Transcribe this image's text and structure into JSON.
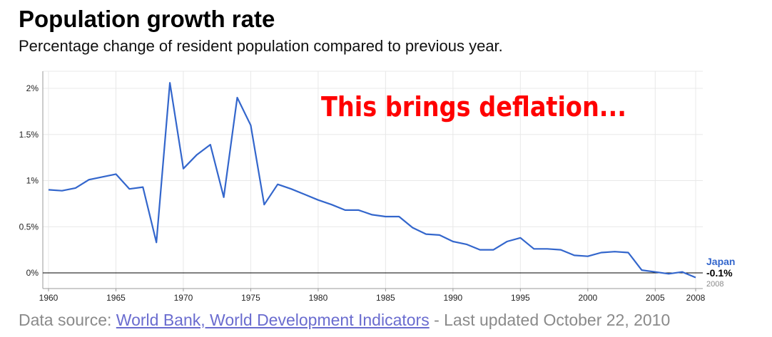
{
  "header": {
    "title": "Population growth rate",
    "subtitle": "Percentage change of resident population compared to previous year."
  },
  "footer": {
    "prefix": "Data source: ",
    "link_text": "World Bank, World Development Indicators",
    "suffix": " - Last updated October 22, 2010"
  },
  "chart_data": {
    "type": "line",
    "xlim": [
      1960,
      2008
    ],
    "ylim": [
      -0.1,
      2.2
    ],
    "grid": true,
    "x_ticks": [
      1960,
      1965,
      1970,
      1975,
      1980,
      1985,
      1990,
      1995,
      2000,
      2005,
      2008
    ],
    "x_tick_labels": [
      "1960",
      "1965",
      "1970",
      "1975",
      "1980",
      "1985",
      "1990",
      "1995",
      "2000",
      "2005",
      "2008"
    ],
    "y_ticks": [
      0,
      0.5,
      1,
      1.5,
      2
    ],
    "y_tick_labels": [
      "0%",
      "0.5%",
      "1%",
      "1.5%",
      "2%"
    ],
    "annotation": "This brings deflation...",
    "colors": {
      "series": "#3366cc",
      "annotation": "#ff0000",
      "grid": "#e8e8e8",
      "axis": "#000000"
    },
    "end_label": {
      "name": "Japan",
      "value": "-0.1%",
      "year": "2008"
    },
    "series": [
      {
        "name": "Japan",
        "x": [
          1960,
          1961,
          1962,
          1963,
          1964,
          1965,
          1966,
          1967,
          1968,
          1969,
          1970,
          1971,
          1972,
          1973,
          1974,
          1975,
          1976,
          1977,
          1978,
          1979,
          1980,
          1981,
          1982,
          1983,
          1984,
          1985,
          1986,
          1987,
          1988,
          1989,
          1990,
          1991,
          1992,
          1993,
          1994,
          1995,
          1996,
          1997,
          1998,
          1999,
          2000,
          2001,
          2002,
          2003,
          2004,
          2005,
          2006,
          2007,
          2008
        ],
        "values": [
          0.9,
          0.89,
          0.92,
          1.01,
          1.04,
          1.07,
          0.91,
          0.93,
          0.33,
          2.06,
          1.13,
          1.28,
          1.39,
          0.82,
          1.9,
          1.6,
          0.74,
          0.96,
          0.91,
          0.85,
          0.79,
          0.74,
          0.68,
          0.68,
          0.63,
          0.61,
          0.61,
          0.49,
          0.42,
          0.41,
          0.34,
          0.31,
          0.25,
          0.25,
          0.34,
          0.38,
          0.26,
          0.26,
          0.25,
          0.19,
          0.18,
          0.22,
          0.23,
          0.22,
          0.03,
          0.01,
          -0.01,
          0.01,
          -0.05
        ]
      }
    ]
  }
}
